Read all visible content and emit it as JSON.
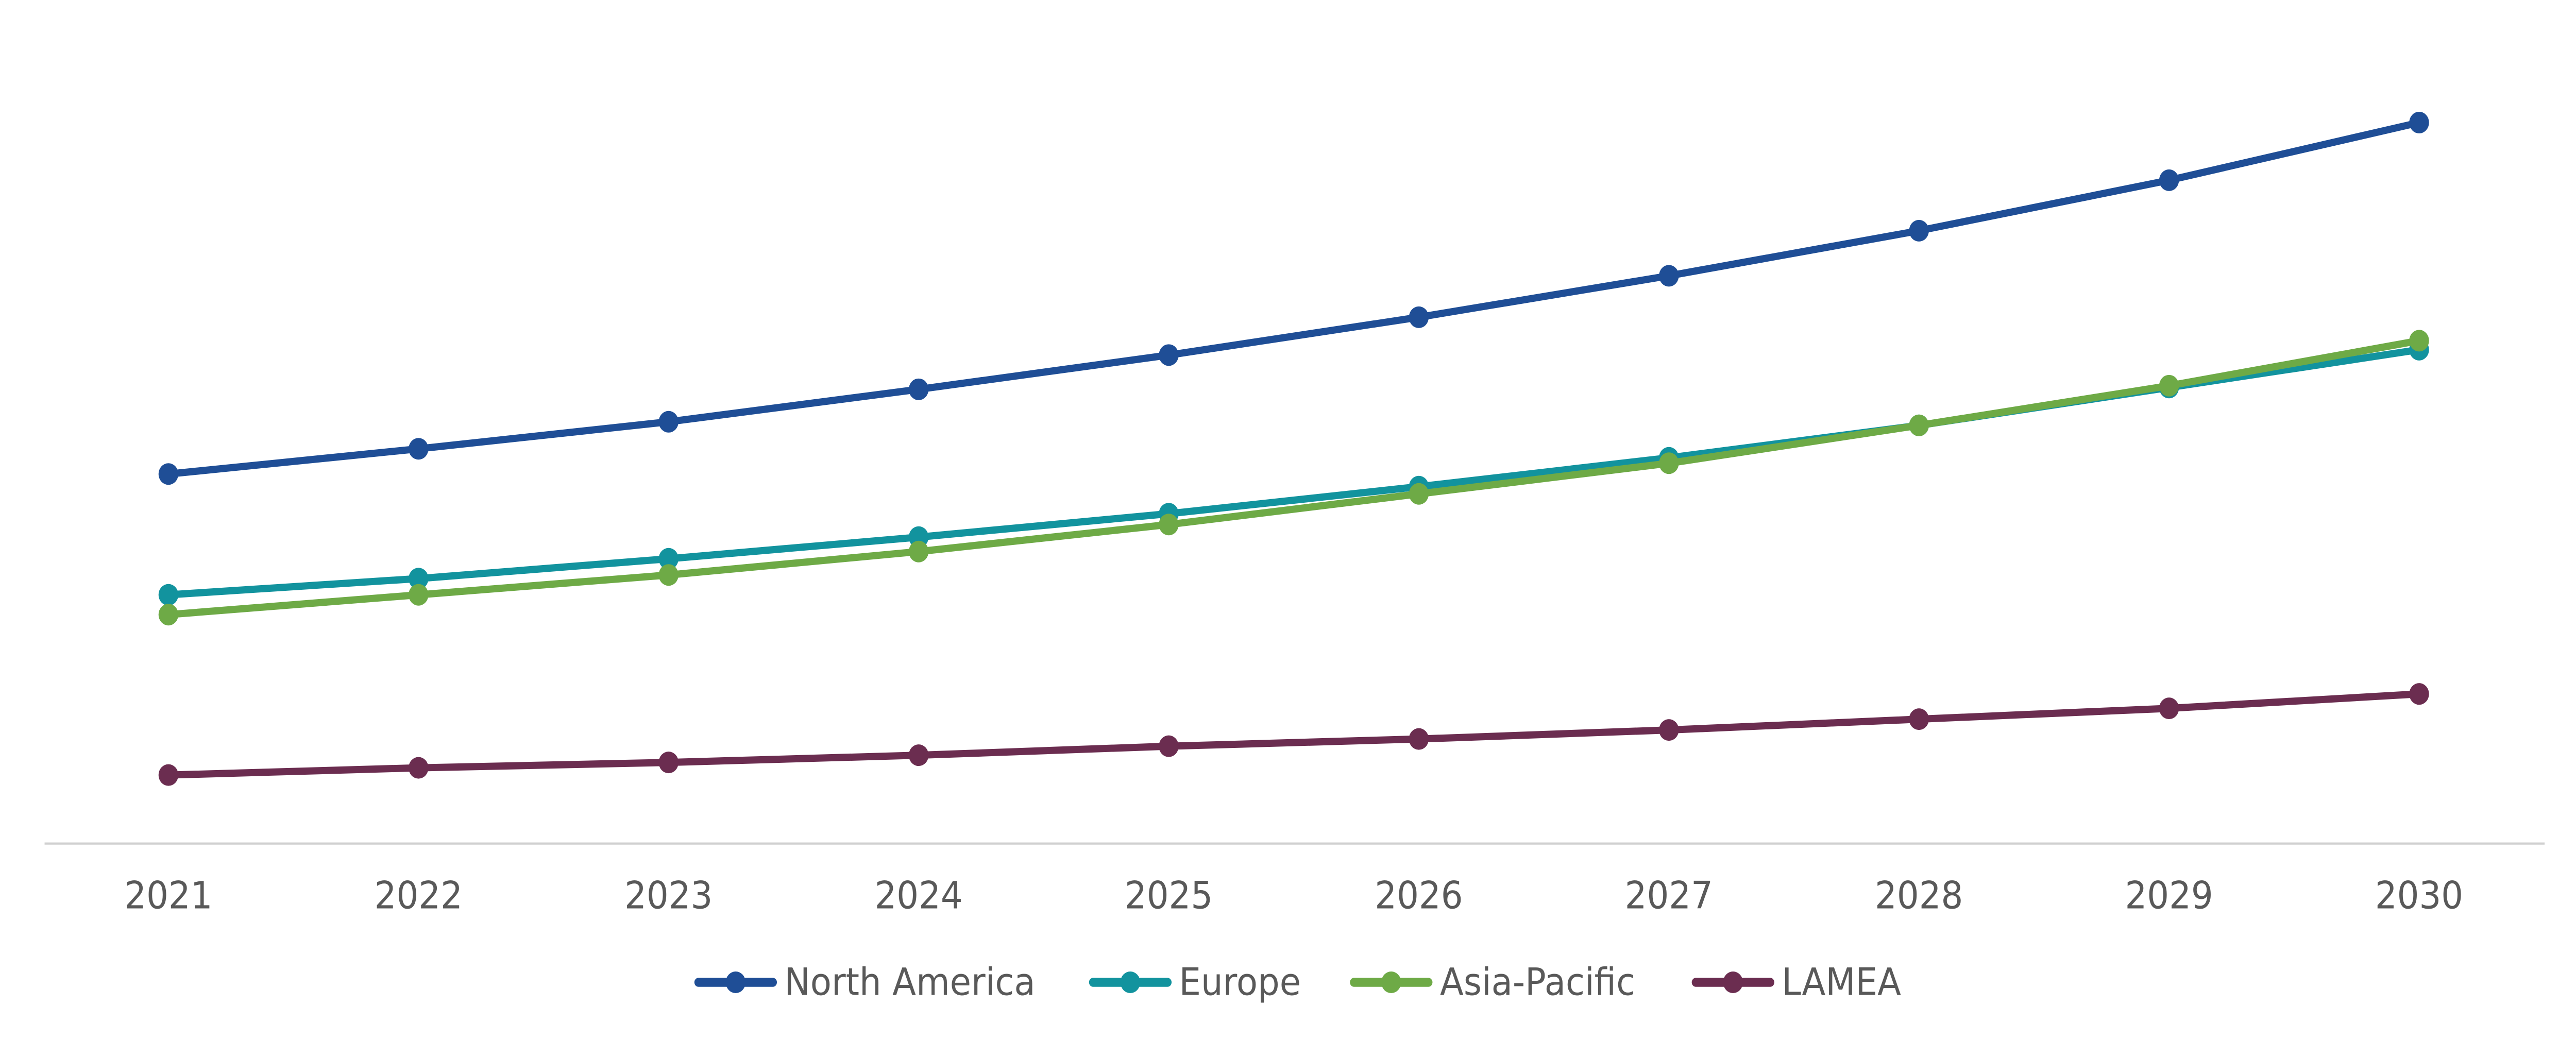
{
  "chart_data": {
    "type": "line",
    "title": "",
    "xlabel": "",
    "ylabel": "",
    "y_axis_shown": false,
    "grid": false,
    "legend_position": "bottom",
    "categories": [
      "2021",
      "2022",
      "2023",
      "2024",
      "2025",
      "2026",
      "2027",
      "2028",
      "2029",
      "2030"
    ],
    "ylim": [
      0,
      420
    ],
    "series": [
      {
        "name": "North America",
        "color": "#1f4e96",
        "values": [
          205,
          219,
          234,
          252,
          271,
          292,
          315,
          340,
          368,
          400
        ]
      },
      {
        "name": "Europe",
        "color": "#12939e",
        "values": [
          138,
          147,
          158,
          170,
          183,
          198,
          214,
          232,
          253,
          274
        ]
      },
      {
        "name": "Asia-Pacific",
        "color": "#6eaa46",
        "values": [
          127,
          138,
          149,
          162,
          177,
          194,
          211,
          232,
          254,
          279
        ]
      },
      {
        "name": "LAMEA",
        "color": "#6b2d50",
        "values": [
          38,
          42,
          45,
          49,
          54,
          58,
          63,
          69,
          75,
          83
        ]
      }
    ]
  }
}
